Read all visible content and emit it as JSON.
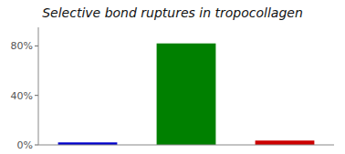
{
  "chart_data": {
    "type": "bar",
    "title": "Selective bond ruptures in tropocollagen",
    "categories": [
      null,
      null,
      null
    ],
    "values": [
      2.0,
      82.0,
      3.5
    ],
    "colors": [
      "#0000cc",
      "#008000",
      "#cc0000"
    ],
    "ylim": [
      0,
      95
    ],
    "yticks": [
      {
        "value": 0,
        "label": "0%"
      },
      {
        "value": 40,
        "label": "40%"
      },
      {
        "value": 80,
        "label": "80%"
      }
    ],
    "grid": false
  }
}
